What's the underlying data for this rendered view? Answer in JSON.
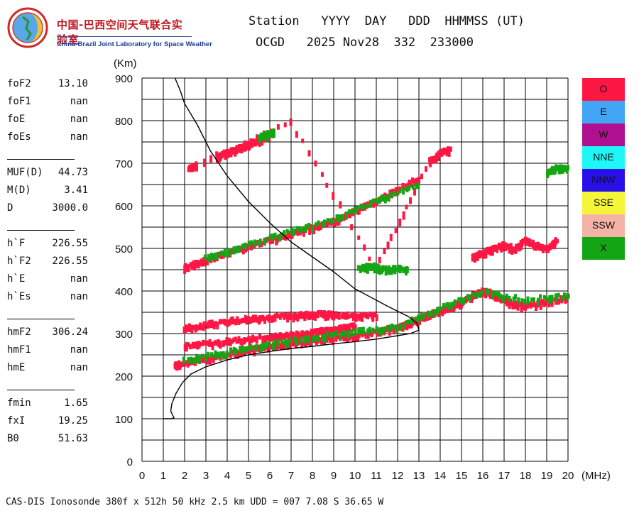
{
  "logo": {
    "cn": "中国-巴西空间天气联合实验室",
    "en": "China-Brazil Joint Laboratory for Space Weather"
  },
  "header": {
    "line1": "Station   YYYY  DAY   DDD  HHMMSS (UT)",
    "line2": "OCGD   2025 Nov28  332  233000"
  },
  "params": [
    {
      "label": "foF2",
      "value": "13.10"
    },
    {
      "label": "foF1",
      "value": "nan"
    },
    {
      "label": "foE",
      "value": "nan"
    },
    {
      "label": "foEs",
      "value": "nan"
    },
    {
      "label": "MUF(D)",
      "value": "44.73"
    },
    {
      "label": "M(D)",
      "value": "3.41"
    },
    {
      "label": "D",
      "value": "3000.0"
    },
    {
      "label": "h`F",
      "value": "226.55"
    },
    {
      "label": "h`F2",
      "value": "226.55"
    },
    {
      "label": "h`E",
      "value": "nan"
    },
    {
      "label": "h`Es",
      "value": "nan"
    },
    {
      "label": "hmF2",
      "value": "306.24"
    },
    {
      "label": "hmF1",
      "value": "nan"
    },
    {
      "label": "hmE",
      "value": "nan"
    },
    {
      "label": "fmin",
      "value": "1.65"
    },
    {
      "label": "fxI",
      "value": "19.25"
    },
    {
      "label": "B0",
      "value": "51.63"
    }
  ],
  "footer": "CAS-DIS Ionosonde 380f x 512h 50 kHz 2.5 km UDD = 007 7.08 S 36.65 W",
  "legend": [
    {
      "label": "O",
      "color": "#ff1744"
    },
    {
      "label": "E",
      "color": "#42a5f5"
    },
    {
      "label": "W",
      "color": "#b0108f"
    },
    {
      "label": "NNE",
      "color": "#1ff7f7"
    },
    {
      "label": "NNW",
      "color": "#2a10e8"
    },
    {
      "label": "SSE",
      "color": "#f5f53a"
    },
    {
      "label": "SSW",
      "color": "#f5b3a8"
    },
    {
      "label": "X",
      "color": "#14a514"
    }
  ],
  "chart_data": {
    "type": "scatter",
    "xlabel": "(MHz)",
    "ylabel": "(Km)",
    "xlim": [
      0,
      20
    ],
    "ylim": [
      0,
      900
    ],
    "x_ticks": [
      0,
      1,
      2,
      3,
      4,
      5,
      6,
      7,
      8,
      9,
      10,
      11,
      12,
      13,
      14,
      15,
      16,
      17,
      18,
      19,
      20
    ],
    "y_ticks": [
      0,
      100,
      200,
      300,
      400,
      500,
      600,
      700,
      800,
      900
    ],
    "grid": true,
    "legend_position": "right",
    "profile": {
      "x": [
        1.0,
        1.4,
        1.5,
        1.35,
        1.4,
        1.6,
        1.9,
        2.3,
        3.0,
        4.0,
        5.0,
        6.0,
        7.0,
        8.0,
        9.0,
        10.0,
        11.0,
        12.0,
        12.6,
        13.0,
        12.9,
        12.5,
        11.5,
        10.0,
        9.0,
        8.0,
        7.0,
        6.0,
        5.0,
        4.0,
        3.2,
        2.6,
        2.0,
        1.8,
        1.55
      ],
      "y": [
        100,
        100,
        102,
        118,
        135,
        160,
        185,
        205,
        222,
        238,
        250,
        258,
        265,
        270,
        276,
        281,
        287,
        295,
        300,
        308,
        325,
        340,
        365,
        405,
        445,
        480,
        515,
        560,
        610,
        670,
        730,
        790,
        840,
        870,
        900
      ]
    },
    "traces": [
      {
        "name": "O",
        "segments": [
          {
            "x": [
              1.55,
              2.0,
              3.0,
              4.0,
              5.0,
              6.0,
              7.0,
              8.0,
              9.0,
              10.0,
              11.0,
              12.0,
              12.5,
              13.0,
              13.5,
              14.0,
              14.5,
              15.0,
              15.5,
              16.0,
              16.5,
              17.0,
              17.5,
              18.0,
              19.0,
              20.0
            ],
            "y": [
              226,
              232,
              243,
              253,
              262,
              270,
              277,
              284,
              290,
              296,
              304,
              316,
              324,
              334,
              345,
              356,
              365,
              375,
              390,
              400,
              395,
              380,
              370,
              365,
              375,
              385
            ]
          },
          {
            "x": [
              2.0,
              3.0,
              4.0,
              5.0,
              6.0,
              6.5,
              7.0,
              7.5,
              8.0,
              8.5,
              9.0,
              9.5,
              10.0
            ],
            "y": [
              272,
              278,
              283,
              288,
              292,
              295,
              297,
              300,
              303,
              308,
              310,
              315,
              318
            ]
          },
          {
            "x": [
              2.0,
              3.0,
              4.0,
              5.0,
              6.0,
              7.0,
              7.5,
              8.0,
              8.5,
              9.0,
              10.0,
              11.0
            ],
            "y": [
              315,
              322,
              330,
              336,
              340,
              343,
              345,
              345,
              347,
              345,
              342,
              343
            ]
          },
          {
            "x": [
              2.0,
              2.5,
              3.0,
              4.0,
              5.0,
              6.0,
              7.0,
              8.0,
              9.0,
              10.0,
              11.0,
              12.0,
              13.0
            ],
            "y": [
              455,
              465,
              473,
              490,
              505,
              520,
              535,
              550,
              565,
              590,
              610,
              640,
              665
            ]
          },
          {
            "x": [
              3.5,
              4.0,
              4.5,
              5.0,
              5.5,
              6.0
            ],
            "y": [
              715,
              725,
              735,
              745,
              755,
              765
            ]
          },
          {
            "x": [
              2.2,
              2.6,
              7.0,
              11.0,
              13.5,
              14.0,
              14.5
            ],
            "y": [
              688,
              698,
              798,
              455,
              705,
              725,
              735
            ]
          },
          {
            "x": [
              15.5,
              16.0,
              16.5,
              17.0,
              17.5,
              18.0,
              18.5,
              19.0,
              19.5
            ],
            "y": [
              480,
              490,
              500,
              510,
              500,
              520,
              510,
              500,
              520
            ]
          }
        ]
      },
      {
        "name": "X",
        "segments": [
          {
            "x": [
              2.0,
              4.0,
              6.0,
              8.0,
              10.0,
              12.0,
              14.0,
              16.0,
              18.0,
              20.0
            ],
            "y": [
              238,
              258,
              278,
              292,
              305,
              318,
              360,
              400,
              380,
              390
            ]
          },
          {
            "x": [
              3.0,
              5.0,
              7.0,
              9.0,
              11.0,
              13.0
            ],
            "y": [
              480,
              510,
              540,
              568,
              612,
              652
            ]
          },
          {
            "x": [
              10.2,
              10.8,
              11.2,
              11.8,
              12.5
            ],
            "y": [
              455,
              460,
              452,
              455,
              450
            ]
          },
          {
            "x": [
              19.0,
              19.5,
              20.0
            ],
            "y": [
              680,
              690,
              690
            ]
          },
          {
            "x": [
              5.5,
              6.0,
              6.2
            ],
            "y": [
              765,
              770,
              775
            ]
          }
        ]
      }
    ]
  }
}
